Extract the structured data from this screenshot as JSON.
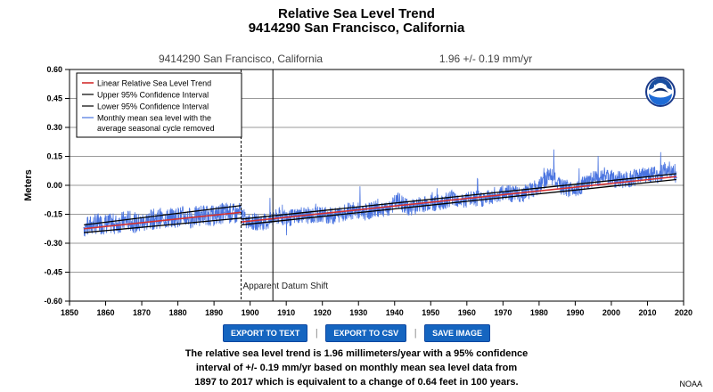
{
  "header": {
    "title": "Relative Sea Level Trend",
    "subtitle": "9414290 San Francisco, California"
  },
  "chart_data": {
    "type": "line",
    "station_label": "9414290 San Francisco, California",
    "trend_label": "1.96 +/-  0.19 mm/yr",
    "ylabel": "Meters",
    "xlim": [
      1850,
      2020
    ],
    "ylim": [
      -0.6,
      0.6
    ],
    "x_ticks": [
      1850,
      1860,
      1870,
      1880,
      1890,
      1900,
      1910,
      1920,
      1930,
      1940,
      1950,
      1960,
      1970,
      1980,
      1990,
      2000,
      2010,
      2020
    ],
    "x_tick_labels": [
      "1850",
      "1860",
      "1870",
      "1880",
      "1890",
      "1900",
      "1910",
      "1920",
      "1930",
      "1940",
      "1950",
      "1960",
      "1970",
      "1980",
      "1990",
      "2000",
      "2010",
      "2020"
    ],
    "y_ticks": [
      -0.6,
      -0.45,
      -0.3,
      -0.15,
      0.0,
      0.15,
      0.3,
      0.45,
      0.6
    ],
    "y_tick_labels": [
      "-0.60",
      "-0.45",
      "-0.30",
      "-0.15",
      "0.00",
      "0.15",
      "0.30",
      "0.45",
      "0.60"
    ],
    "legend": [
      {
        "label": "Linear Relative Sea Level Trend",
        "color": "#d32f2f"
      },
      {
        "label": "Upper 95% Confidence Interval",
        "color": "#000000"
      },
      {
        "label": "Lower 95% Confidence Interval",
        "color": "#000000"
      },
      {
        "label": "Monthly mean sea level with the",
        "label2": "average seasonal cycle removed",
        "color": "#4a74e0"
      }
    ],
    "datum_shift_label": "Apparent Datum Shift",
    "datum_shift_year": 1897.5,
    "vertical_line_year": 1906.3,
    "segments": [
      {
        "name": "pre-shift",
        "x_range": [
          1854,
          1897.5
        ],
        "trend": [
          -0.225,
          -0.14
        ],
        "upper": [
          -0.205,
          -0.105
        ],
        "lower": [
          -0.245,
          -0.17
        ]
      },
      {
        "name": "post-shift",
        "x_range": [
          1897.5,
          2018
        ],
        "trend": [
          -0.19,
          0.045
        ],
        "upper": [
          -0.175,
          0.06
        ],
        "lower": [
          -0.205,
          0.03
        ]
      }
    ],
    "monthly_series": {
      "name": "Monthly mean sea level",
      "color": "#4a74e0",
      "x": [
        1854,
        1857,
        1860,
        1863,
        1866,
        1869,
        1872,
        1875,
        1878,
        1881,
        1884,
        1887,
        1890,
        1893,
        1896,
        1897.5,
        1899,
        1902,
        1905,
        1908,
        1911,
        1914,
        1917,
        1920,
        1923,
        1926,
        1929,
        1932,
        1935,
        1938,
        1941,
        1944,
        1947,
        1950,
        1953,
        1956,
        1959,
        1962,
        1965,
        1968,
        1971,
        1974,
        1977,
        1980,
        1983,
        1986,
        1989,
        1992,
        1995,
        1998,
        2001,
        2004,
        2007,
        2010,
        2013,
        2016,
        2018
      ],
      "values": [
        -0.22,
        -0.2,
        -0.2,
        -0.2,
        -0.18,
        -0.2,
        -0.18,
        -0.17,
        -0.17,
        -0.16,
        -0.17,
        -0.15,
        -0.16,
        -0.14,
        -0.15,
        -0.14,
        -0.19,
        -0.19,
        -0.19,
        -0.16,
        -0.17,
        -0.15,
        -0.16,
        -0.15,
        -0.16,
        -0.14,
        -0.13,
        -0.14,
        -0.12,
        -0.12,
        -0.08,
        -0.12,
        -0.1,
        -0.09,
        -0.09,
        -0.06,
        -0.08,
        -0.07,
        -0.07,
        -0.05,
        -0.04,
        -0.05,
        -0.03,
        -0.01,
        0.06,
        -0.01,
        -0.02,
        0.0,
        0.03,
        0.05,
        0.03,
        0.03,
        0.04,
        0.06,
        0.05,
        0.09,
        0.04
      ]
    }
  },
  "buttons": {
    "export_text": "EXPORT TO TEXT",
    "export_csv": "EXPORT TO CSV",
    "save_image": "SAVE IMAGE",
    "separator": "|"
  },
  "caption": {
    "line1": "The relative sea level trend is 1.96 millimeters/year with a 95% confidence",
    "line2": "interval of +/- 0.19 mm/yr based on monthly mean sea level data from",
    "line3": "1897 to 2017 which is equivalent to a change of 0.64 feet in 100 years."
  },
  "credit": "NOAA",
  "logo": {
    "text": "NOAA"
  }
}
